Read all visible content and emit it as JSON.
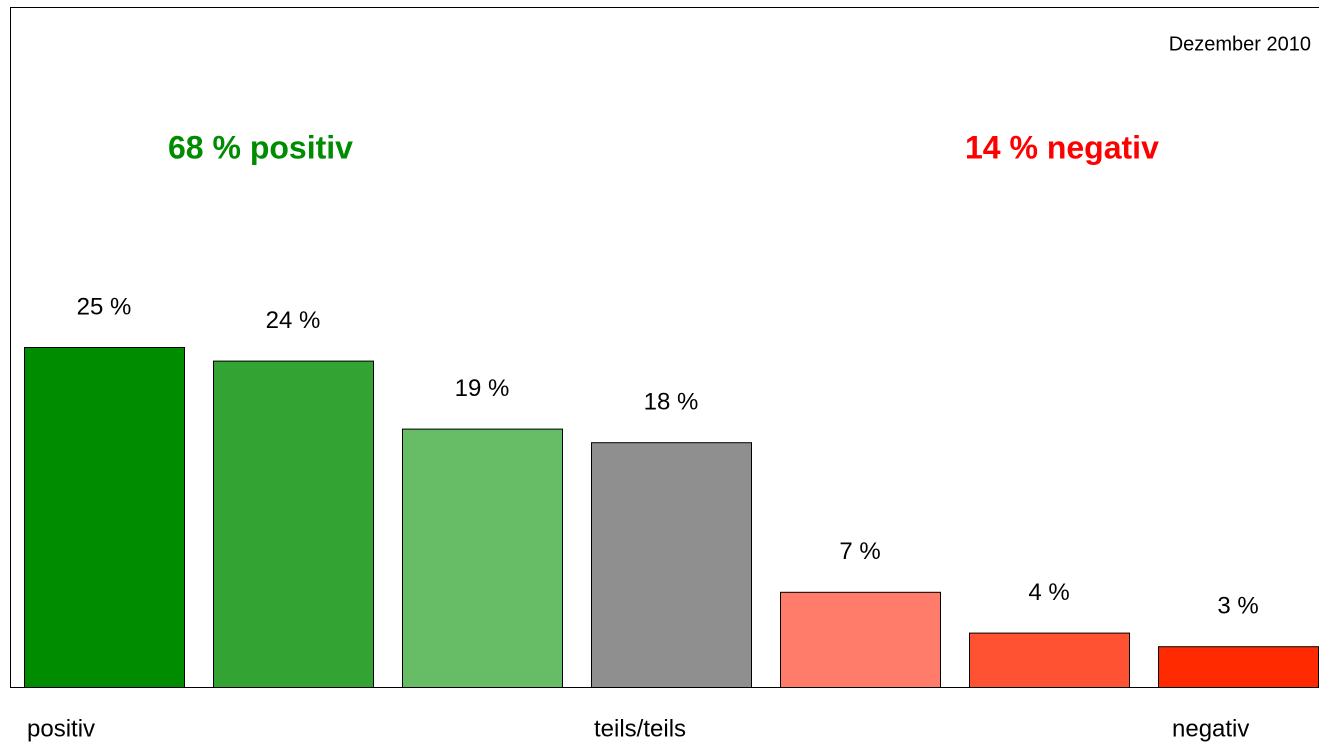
{
  "chart_data": {
    "type": "bar",
    "date": "Dezember 2010",
    "annotations": [
      {
        "text": "68 % positiv",
        "color": "#008c00"
      },
      {
        "text": "14 % negativ",
        "color": "#ff0000"
      }
    ],
    "categories": [
      "positiv",
      null,
      null,
      "teils/teils",
      null,
      null,
      "negativ"
    ],
    "values": [
      25,
      24,
      19,
      18,
      7,
      4,
      3
    ],
    "value_labels": [
      "25 %",
      "24 %",
      "19 %",
      "18 %",
      "7 %",
      "4 %",
      "3 %"
    ],
    "colors": [
      "#008c00",
      "#33a433",
      "#66bd66",
      "#8f8f8f",
      "#ff7b6a",
      "#ff5233",
      "#ff2a00"
    ]
  }
}
